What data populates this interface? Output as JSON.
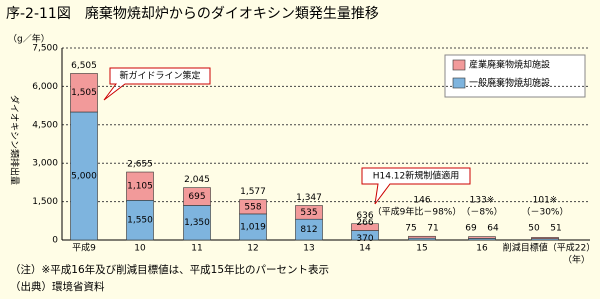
{
  "chart_data": {
    "type": "stacked_bar",
    "title": "序-2-11図　廃棄物焼却炉からのダイオキシン類発生量推移",
    "y_unit": "（g／年）",
    "ylabel": "ダイオキシン類排出量",
    "x_unit": "（年）",
    "categories": [
      "平成9",
      "10",
      "11",
      "12",
      "13",
      "14",
      "15",
      "16",
      "削減目標値（平成22）"
    ],
    "series": [
      {
        "name": "一般廃棄物焼却施設",
        "color": "#7eb4de",
        "values": [
          5000,
          1550,
          1350,
          1019,
          812,
          370,
          71,
          64,
          51
        ],
        "value_labels": [
          "5,000",
          "1,550",
          "1,350",
          "1,019",
          "812",
          "370",
          "71",
          "64",
          "51"
        ]
      },
      {
        "name": "産業廃棄物焼却施設",
        "color": "#f29a9a",
        "values": [
          1505,
          1105,
          695,
          558,
          535,
          266,
          75,
          69,
          50
        ],
        "value_labels": [
          "1,505",
          "1,105",
          "695",
          "558",
          "535",
          "266",
          "75",
          "69",
          "50"
        ]
      }
    ],
    "totals": [
      6505,
      2655,
      2045,
      1577,
      1347,
      636,
      146,
      133,
      101
    ],
    "total_labels": [
      "6,505",
      "2,655",
      "2,045",
      "1,577",
      "1,347",
      "636",
      "146",
      "133※",
      "101※"
    ],
    "annotations": [
      "（平成9年比－98%）",
      "（－8%）",
      "（－30%）"
    ],
    "callouts": [
      "新ガイドライン策定",
      "H14.12新規制値適用"
    ],
    "ylim": [
      0,
      7500
    ],
    "yticks": [
      0,
      {
        "value": 1500,
        "label": "1,500"
      },
      {
        "value": 3000,
        "label": "3,000"
      },
      {
        "value": 4500,
        "label": "4,500"
      },
      {
        "value": 6000,
        "label": "6,000"
      },
      {
        "value": 7500,
        "label": "7,500"
      }
    ],
    "grid": true,
    "legend": "top-right",
    "notes": [
      "（注）※平成16年及び削減目標値は、平成15年比のパーセント表示",
      "（出典）環境省資料"
    ]
  }
}
